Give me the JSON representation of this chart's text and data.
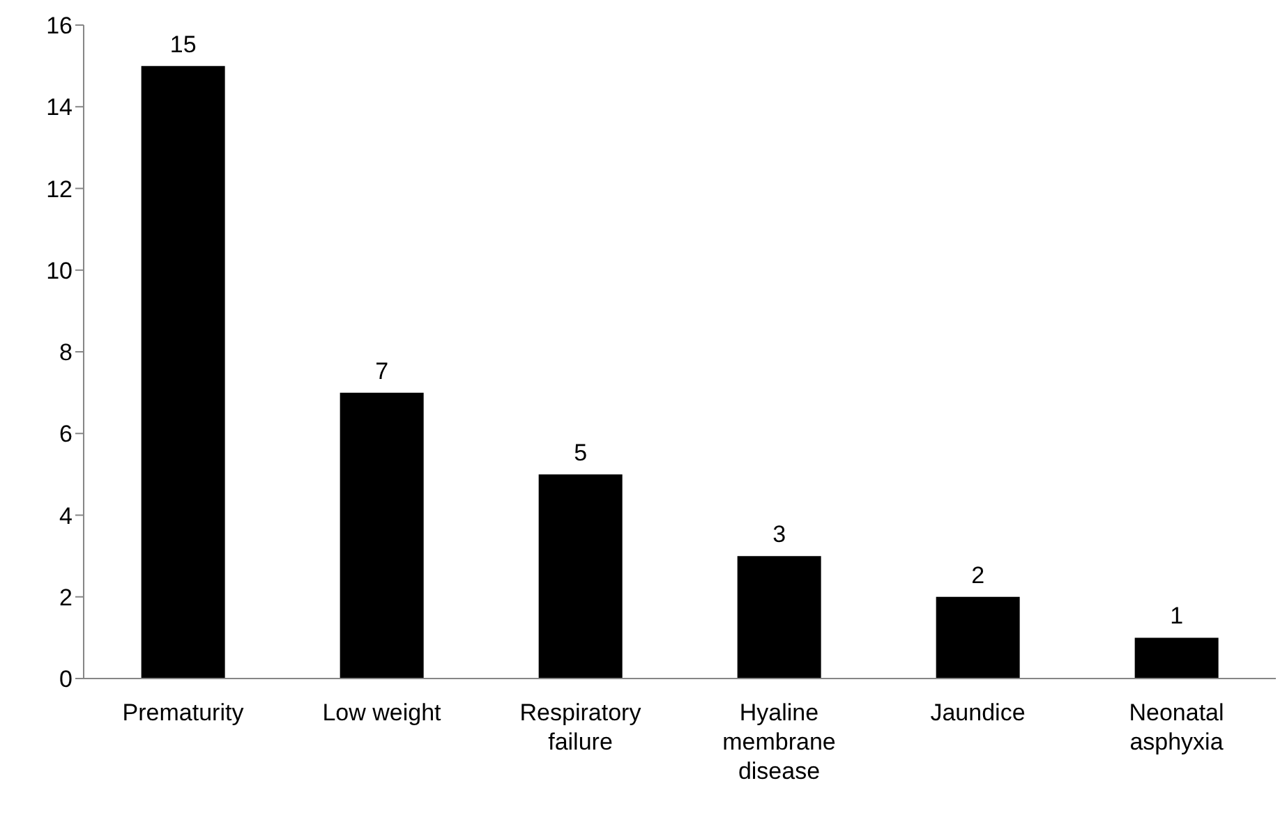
{
  "chart_data": {
    "type": "bar",
    "categories": [
      "Prematurity",
      "Low weight",
      "Respiratory failure",
      "Hyaline membrane disease",
      "Jaundice",
      "Neonatal asphyxia"
    ],
    "values": [
      15,
      7,
      5,
      3,
      2,
      1
    ],
    "color": "#000000",
    "ylim": [
      0,
      16
    ],
    "yticks": [
      0,
      2,
      4,
      6,
      8,
      10,
      12,
      14,
      16
    ],
    "data_labels": true,
    "grid": false,
    "legend": false
  }
}
